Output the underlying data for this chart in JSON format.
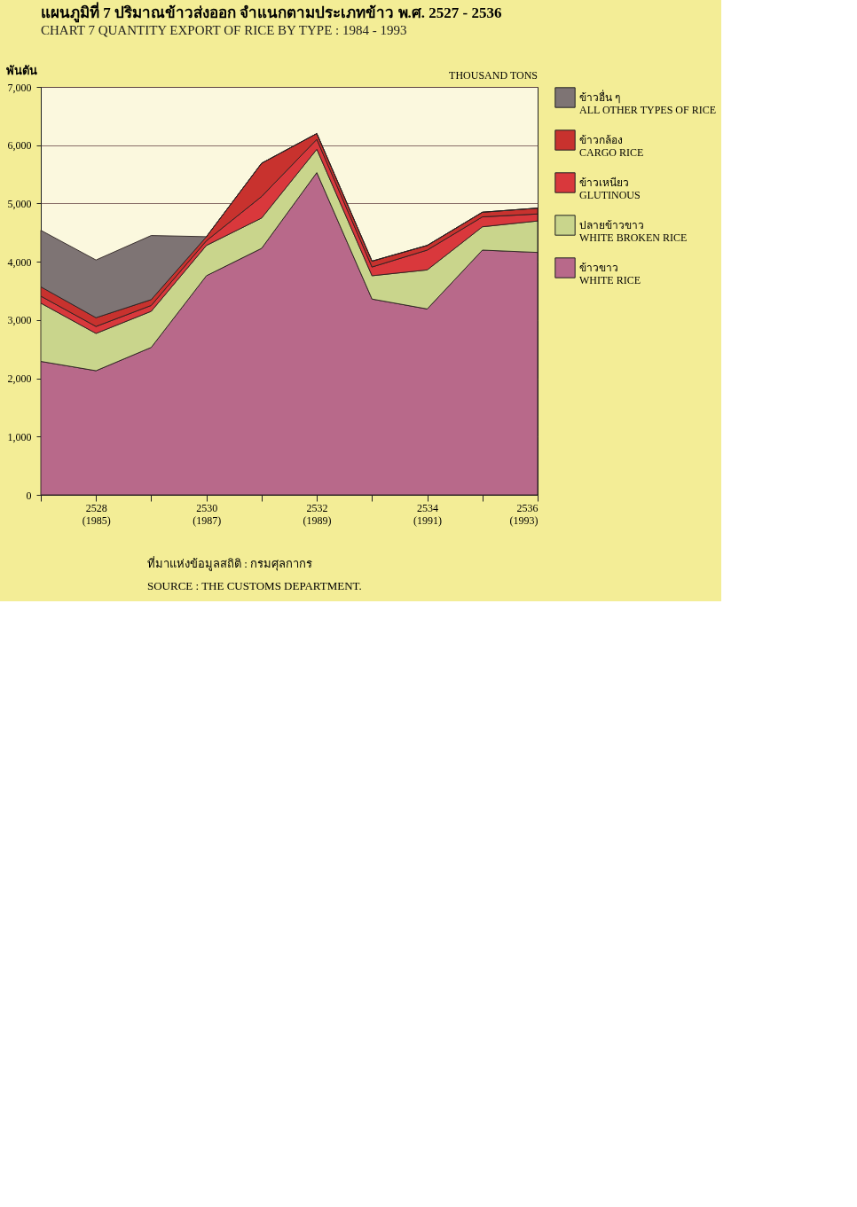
{
  "chart_data": {
    "type": "area",
    "stacked": true,
    "title": "แผนภูมิที่ 7   ปริมาณข้าวส่งออก จำแนกตามประเภทข้าว พ.ศ. 2527 - 2536",
    "subtitle": "CHART 7   QUANTITY EXPORT OF RICE BY TYPE : 1984 - 1993",
    "ylabel": "พันตัน",
    "annotations": [
      "THOUSAND TONS",
      "ที่มาแห่งข้อมูลสถิติ  :  กรมศุลกากร",
      "SOURCE  :  THE CUSTOMS DEPARTMENT."
    ],
    "categories": [
      null,
      "2528\n(1985)",
      null,
      "2530\n(1987)",
      null,
      "2532\n(1989)",
      null,
      "2534\n(1991)",
      null,
      "2536\n(1993)"
    ],
    "ylim": [
      0,
      7000
    ],
    "yticks": [
      0,
      {
        "value": 1000,
        "label": "1,000"
      },
      {
        "value": 2000,
        "label": "2,000"
      },
      {
        "value": 3000,
        "label": "3,000"
      },
      {
        "value": 4000,
        "label": "4,000"
      },
      {
        "value": 5000,
        "label": "5,000"
      },
      {
        "value": 6000,
        "label": "6,000"
      },
      {
        "value": 7000,
        "label": "7,000"
      }
    ],
    "grid": "y",
    "legend": "right",
    "series": [
      {
        "name": "ข้าวขาว\nWHITE RICE",
        "color": "#b8698a",
        "values": [
          2290,
          2130,
          2530,
          3760,
          4230,
          5530,
          3360,
          3190,
          4200,
          4160
        ]
      },
      {
        "name": "ปลายข้าวขาว\nWHITE BROKEN RICE",
        "color": "#c9d58c",
        "values": [
          1000,
          640,
          620,
          520,
          520,
          400,
          400,
          670,
          400,
          540
        ]
      },
      {
        "name": "ข้าวเหนียว\nGLUTINOUS",
        "color": "#d9383c",
        "values": [
          120,
          120,
          100,
          80,
          370,
          170,
          150,
          340,
          170,
          120
        ]
      },
      {
        "name": "ข้าวกล้อง\nCARGO RICE",
        "color": "#c8322e",
        "values": [
          160,
          150,
          100,
          70,
          570,
          100,
          100,
          80,
          80,
          100
        ]
      },
      {
        "name": "ข้าวอื่น ๆ\nALL OTHER TYPES OF RICE",
        "color": "#7e7474",
        "values": [
          970,
          990,
          1100,
          0,
          0,
          0,
          0,
          0,
          0,
          0
        ]
      }
    ]
  }
}
